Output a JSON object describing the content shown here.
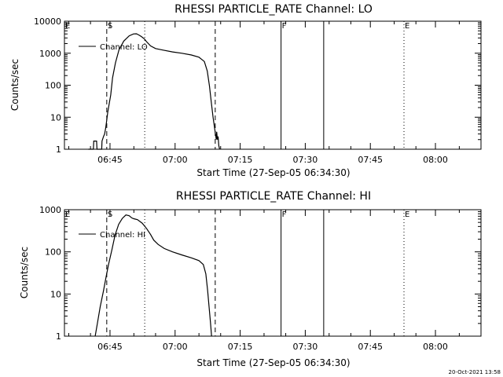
{
  "colors": {
    "background": "#ffffff",
    "foreground": "#000000"
  },
  "timestamp": "20-Oct-2021 13:58",
  "chart_data": [
    {
      "type": "line",
      "title": "RHESSI PARTICLE_RATE Channel: LO",
      "xlabel": "Start Time (27-Sep-05 06:34:30)",
      "ylabel": "Counts/sec",
      "yscale": "log",
      "ylim": [
        1,
        10000
      ],
      "xlim": [
        "06:34:30",
        "08:10:30"
      ],
      "x_ticks": [
        "06:45",
        "07:00",
        "07:15",
        "07:30",
        "07:45",
        "08:00"
      ],
      "y_ticks": [
        "1",
        "10",
        "100",
        "1000",
        "10000"
      ],
      "grid": false,
      "legend": {
        "position": "top-left",
        "entries": [
          "Channel: LO"
        ]
      },
      "markers": [
        {
          "label": "E",
          "time": "06:34:30",
          "style": "solid"
        },
        {
          "label": "S",
          "time": "06:44:15",
          "style": "dashed"
        },
        {
          "label": "",
          "time": "06:53:00",
          "style": "dotted"
        },
        {
          "label": "",
          "time": "07:09:15",
          "style": "dashed"
        },
        {
          "label": "F",
          "time": "07:24:25",
          "style": "solid"
        },
        {
          "label": "",
          "time": "07:34:15",
          "style": "solid"
        },
        {
          "label": "E",
          "time": "07:52:45",
          "style": "dotted"
        },
        {
          "label": "",
          "time": "08:10:30",
          "style": "dotted"
        }
      ],
      "series": [
        {
          "name": "Channel: LO",
          "x": [
            "06:40:00",
            "06:41:10",
            "06:41:15",
            "06:41:55",
            "06:42:00",
            "06:43:05",
            "06:43:10",
            "06:43:30",
            "06:43:45",
            "06:44:00",
            "06:44:15",
            "06:44:30",
            "06:45:10",
            "06:45:35",
            "06:46:15",
            "06:47:05",
            "06:48:10",
            "06:49:25",
            "06:50:25",
            "06:51:05",
            "06:51:40",
            "06:52:15",
            "06:52:55",
            "06:53:25",
            "06:54:20",
            "06:55:30",
            "06:57:15",
            "06:59:25",
            "07:01:35",
            "07:03:45",
            "07:05:30",
            "07:06:45",
            "07:07:25",
            "07:07:55",
            "07:08:20",
            "07:08:45",
            "07:09:10",
            "07:09:30",
            "07:09:35",
            "07:09:45",
            "07:09:55",
            "07:10:05",
            "07:10:15"
          ],
          "y": [
            1.0,
            1.0,
            1.8,
            1.8,
            1.0,
            1.0,
            1.8,
            2.5,
            3.0,
            4.5,
            8,
            15,
            50,
            170,
            500,
            1300,
            2400,
            3500,
            4000,
            4050,
            3700,
            3300,
            2800,
            2300,
            1700,
            1400,
            1250,
            1100,
            1000,
            880,
            750,
            550,
            280,
            95,
            30,
            10,
            4,
            2,
            3.5,
            2,
            2.5,
            1.3,
            1.0
          ]
        }
      ]
    },
    {
      "type": "line",
      "title": "RHESSI PARTICLE_RATE Channel: HI",
      "xlabel": "Start Time (27-Sep-05 06:34:30)",
      "ylabel": "Counts/sec",
      "yscale": "log",
      "ylim": [
        1,
        1000
      ],
      "xlim": [
        "06:34:30",
        "08:10:30"
      ],
      "x_ticks": [
        "06:45",
        "07:00",
        "07:15",
        "07:30",
        "07:45",
        "08:00"
      ],
      "y_ticks": [
        "1",
        "10",
        "100",
        "1000"
      ],
      "grid": false,
      "legend": {
        "position": "top-left",
        "entries": [
          "Channel: HI"
        ]
      },
      "markers": [
        {
          "label": "E",
          "time": "06:34:30",
          "style": "solid"
        },
        {
          "label": "S",
          "time": "06:44:15",
          "style": "dashed"
        },
        {
          "label": "",
          "time": "06:53:00",
          "style": "dotted"
        },
        {
          "label": "",
          "time": "07:09:15",
          "style": "dashed"
        },
        {
          "label": "F",
          "time": "07:24:25",
          "style": "solid"
        },
        {
          "label": "",
          "time": "07:34:15",
          "style": "solid"
        },
        {
          "label": "E",
          "time": "07:52:45",
          "style": "dotted"
        },
        {
          "label": "",
          "time": "08:10:30",
          "style": "dotted"
        }
      ],
      "series": [
        {
          "name": "Channel: HI",
          "x": [
            "06:41:35",
            "06:42:05",
            "06:42:45",
            "06:43:30",
            "06:44:05",
            "06:44:40",
            "06:45:25",
            "06:46:10",
            "06:47:00",
            "06:47:50",
            "06:48:40",
            "06:49:25",
            "06:50:00",
            "06:50:30",
            "06:51:20",
            "06:52:25",
            "06:53:25",
            "06:54:20",
            "06:55:05",
            "06:56:05",
            "06:57:30",
            "06:59:25",
            "07:01:30",
            "07:03:45",
            "07:05:30",
            "07:06:30",
            "07:07:05",
            "07:07:30",
            "07:07:50",
            "07:08:10",
            "07:08:25"
          ],
          "y": [
            1.0,
            2,
            5,
            12,
            25,
            50,
            110,
            250,
            450,
            620,
            750,
            720,
            640,
            610,
            580,
            480,
            360,
            260,
            190,
            150,
            120,
            100,
            85,
            72,
            62,
            50,
            30,
            12,
            5,
            2,
            1.0
          ]
        }
      ]
    }
  ]
}
